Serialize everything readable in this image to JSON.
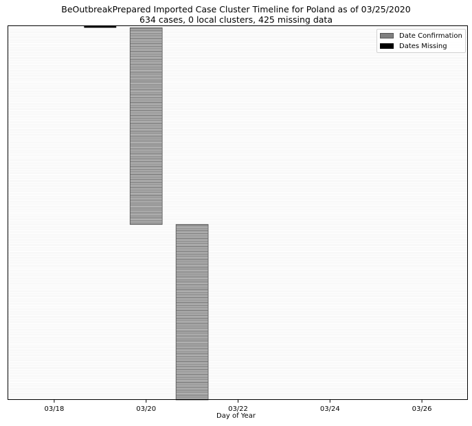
{
  "chart_data": {
    "type": "bar",
    "orientation": "horizontal",
    "title": "BeOutbreakPrepared Imported Case Cluster Timeline for Poland as of 03/25/2020",
    "subtitle": "634 cases, 0 local clusters, 425 missing data",
    "xlabel": "Day of Year",
    "ylabel": "",
    "x_tick_labels": [
      "03/18",
      "03/20",
      "03/22",
      "03/24",
      "03/26"
    ],
    "x_ticks": [
      "2020-03-18",
      "2020-03-20",
      "2020-03-22",
      "2020-03-24",
      "2020-03-26"
    ],
    "xlim": [
      "2020-03-17",
      "2020-03-27"
    ],
    "grid": "horizontal",
    "legend_position": "top-right",
    "series": [
      {
        "name": "Date Confirmation",
        "color": "#808080",
        "values": [
          {
            "date": "2020-03-20",
            "count": 120
          },
          {
            "date": "2020-03-21",
            "count": 107
          }
        ]
      },
      {
        "name": "Dates Missing",
        "color": "#000000",
        "values": [
          {
            "date": "2020-03-19",
            "count": 1
          }
        ]
      }
    ]
  }
}
